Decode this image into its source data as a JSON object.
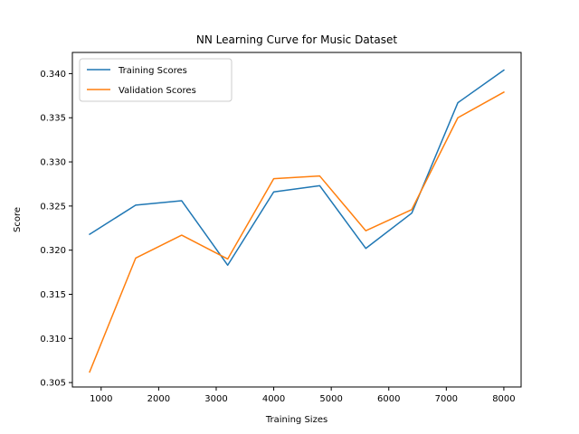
{
  "chart_data": {
    "type": "line",
    "title": "NN Learning Curve for Music Dataset",
    "xlabel": "Training Sizes",
    "ylabel": "Score",
    "x": [
      800,
      1600,
      2400,
      3200,
      4000,
      4800,
      5600,
      6400,
      7200,
      8000
    ],
    "xlim": [
      500,
      8300
    ],
    "ylim": [
      0.3045,
      0.3424
    ],
    "xticks": [
      1000,
      2000,
      3000,
      4000,
      5000,
      6000,
      7000,
      8000
    ],
    "xtick_labels": [
      "1000",
      "2000",
      "3000",
      "4000",
      "5000",
      "6000",
      "7000",
      "8000"
    ],
    "yticks": [
      0.305,
      0.31,
      0.315,
      0.32,
      0.325,
      0.33,
      0.335,
      0.34
    ],
    "ytick_labels": [
      "0.305",
      "0.310",
      "0.315",
      "0.320",
      "0.325",
      "0.330",
      "0.335",
      "0.340"
    ],
    "grid": false,
    "legend_position": "top-left",
    "series": [
      {
        "name": "Training Scores",
        "color": "#1f77b4",
        "values": [
          0.3218,
          0.3251,
          0.3256,
          0.3183,
          0.3266,
          0.3273,
          0.3202,
          0.3242,
          0.3367,
          0.3404
        ]
      },
      {
        "name": "Validation Scores",
        "color": "#ff7f0e",
        "values": [
          0.3062,
          0.3191,
          0.3217,
          0.319,
          0.3281,
          0.3284,
          0.3222,
          0.3246,
          0.335,
          0.3379
        ]
      }
    ]
  }
}
